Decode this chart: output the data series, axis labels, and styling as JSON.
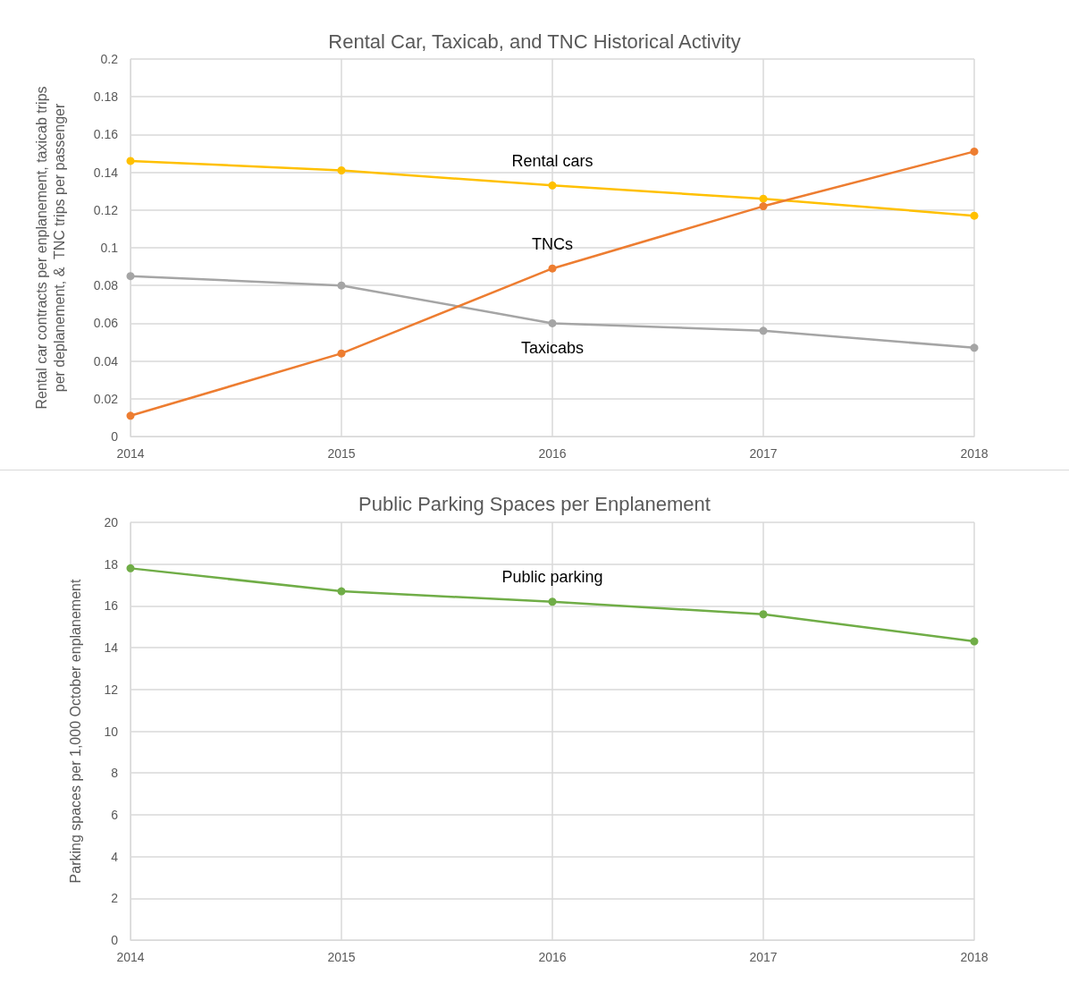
{
  "chart_data": [
    {
      "type": "line",
      "title": "Rental Car, Taxicab, and TNC Historical Activity",
      "ylabel": "Rental car contracts per enplanement, taxicab trips\nper deplanement, &  TNC trips per passenger",
      "x": [
        2014,
        2015,
        2016,
        2017,
        2018
      ],
      "xlim": [
        2014,
        2018
      ],
      "xticks": [
        2014,
        2015,
        2016,
        2017,
        2018
      ],
      "ylim": [
        0,
        0.2
      ],
      "yticks": [
        0,
        0.02,
        0.04,
        0.06,
        0.08,
        0.1,
        0.12,
        0.14,
        0.16,
        0.18,
        0.2
      ],
      "series": [
        {
          "name": "Rental cars",
          "color": "#ffc000",
          "values": [
            0.146,
            0.141,
            0.133,
            0.126,
            0.117
          ]
        },
        {
          "name": "Taxicabs",
          "color": "#a5a5a5",
          "values": [
            0.085,
            0.08,
            0.06,
            0.056,
            0.047
          ]
        },
        {
          "name": "TNCs",
          "color": "#ed7d31",
          "values": [
            0.011,
            0.044,
            0.089,
            0.122,
            0.151
          ]
        }
      ],
      "grid": true,
      "legend": false,
      "marker": "circle",
      "line_style": "solid"
    },
    {
      "type": "line",
      "title": "Public Parking Spaces per Enplanement",
      "ylabel": "Parking spaces per 1,000 October enplanement",
      "x": [
        2014,
        2015,
        2016,
        2017,
        2018
      ],
      "xlim": [
        2014,
        2018
      ],
      "xticks": [
        2014,
        2015,
        2016,
        2017,
        2018
      ],
      "ylim": [
        0,
        20
      ],
      "yticks": [
        0,
        2,
        4,
        6,
        8,
        10,
        12,
        14,
        16,
        18,
        20
      ],
      "series": [
        {
          "name": "Public parking",
          "color": "#70ad47",
          "values": [
            17.8,
            16.7,
            16.2,
            15.6,
            14.3
          ]
        }
      ],
      "grid": true,
      "legend": false,
      "marker": "circle",
      "line_style": "solid"
    }
  ]
}
